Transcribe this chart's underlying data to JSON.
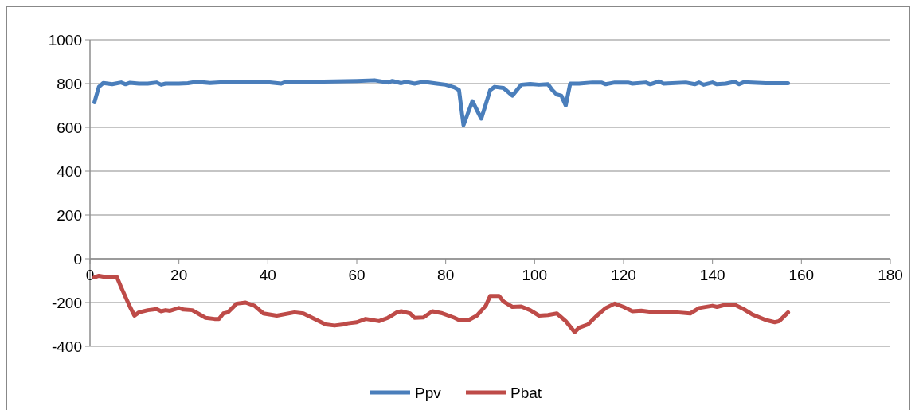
{
  "chart_data": {
    "type": "line",
    "xlim": [
      0,
      180
    ],
    "xticks": [
      0,
      20,
      40,
      60,
      80,
      100,
      120,
      140,
      160,
      180
    ],
    "ylim": [
      -400,
      1000
    ],
    "yticks": [
      -400,
      -200,
      0,
      200,
      400,
      600,
      800,
      1000
    ],
    "grid": "y",
    "legend": "bottom",
    "marker": "none",
    "line_style": "solid",
    "series": [
      {
        "name": "Ppv",
        "color": "#4a7ebb",
        "x": [
          1,
          2,
          3,
          5,
          7,
          8,
          9,
          11,
          13,
          15,
          16,
          17,
          20,
          22,
          24,
          27,
          30,
          35,
          40,
          43,
          44,
          50,
          55,
          60,
          64,
          67,
          68,
          70,
          71,
          73,
          75,
          78,
          80,
          82,
          83,
          84,
          86,
          88,
          90,
          91,
          93,
          95,
          97,
          99,
          101,
          103,
          104,
          105,
          106,
          107,
          108,
          110,
          113,
          115,
          116,
          118,
          121,
          122,
          125,
          126,
          128,
          129,
          134,
          136,
          137,
          138,
          140,
          141,
          143,
          145,
          146,
          147,
          152,
          157
        ],
        "values": [
          715,
          785,
          803,
          797,
          805,
          797,
          804,
          800,
          800,
          805,
          795,
          800,
          800,
          802,
          808,
          803,
          806,
          808,
          806,
          800,
          808,
          808,
          810,
          812,
          815,
          805,
          812,
          802,
          808,
          800,
          808,
          800,
          795,
          782,
          770,
          610,
          720,
          640,
          770,
          785,
          780,
          745,
          795,
          798,
          795,
          797,
          770,
          750,
          745,
          700,
          800,
          800,
          805,
          805,
          797,
          805,
          805,
          800,
          805,
          797,
          810,
          800,
          805,
          797,
          805,
          795,
          805,
          797,
          800,
          808,
          797,
          806,
          802,
          802
        ]
      },
      {
        "name": "Pbat",
        "color": "#be4b48",
        "x": [
          1,
          2,
          3,
          4,
          6,
          7,
          9,
          10,
          11,
          13,
          15,
          16,
          17,
          18,
          20,
          21,
          23,
          26,
          28,
          29,
          30,
          31,
          33,
          35,
          37,
          39,
          42,
          46,
          48,
          51,
          53,
          55,
          57,
          58,
          60,
          62,
          65,
          67,
          69,
          70,
          72,
          73,
          75,
          77,
          79,
          80,
          82,
          83,
          85,
          87,
          89,
          90,
          92,
          93,
          95,
          97,
          99,
          101,
          103,
          105,
          107,
          109,
          110,
          112,
          113,
          114,
          116,
          118,
          120,
          122,
          124,
          127,
          132,
          135,
          137,
          140,
          141,
          143,
          145,
          147,
          149,
          152,
          154,
          155,
          157
        ],
        "values": [
          -85,
          -78,
          -82,
          -85,
          -82,
          -130,
          -220,
          -260,
          -245,
          -235,
          -230,
          -240,
          -235,
          -238,
          -225,
          -232,
          -235,
          -270,
          -275,
          -275,
          -250,
          -245,
          -205,
          -200,
          -215,
          -250,
          -260,
          -245,
          -250,
          -280,
          -300,
          -305,
          -300,
          -295,
          -290,
          -275,
          -285,
          -270,
          -245,
          -240,
          -250,
          -270,
          -268,
          -240,
          -248,
          -255,
          -270,
          -280,
          -282,
          -260,
          -215,
          -170,
          -170,
          -195,
          -220,
          -218,
          -235,
          -260,
          -257,
          -250,
          -285,
          -335,
          -315,
          -300,
          -280,
          -260,
          -225,
          -205,
          -220,
          -240,
          -237,
          -245,
          -245,
          -250,
          -225,
          -215,
          -220,
          -210,
          -210,
          -230,
          -255,
          -280,
          -290,
          -285,
          -245
        ]
      }
    ]
  }
}
